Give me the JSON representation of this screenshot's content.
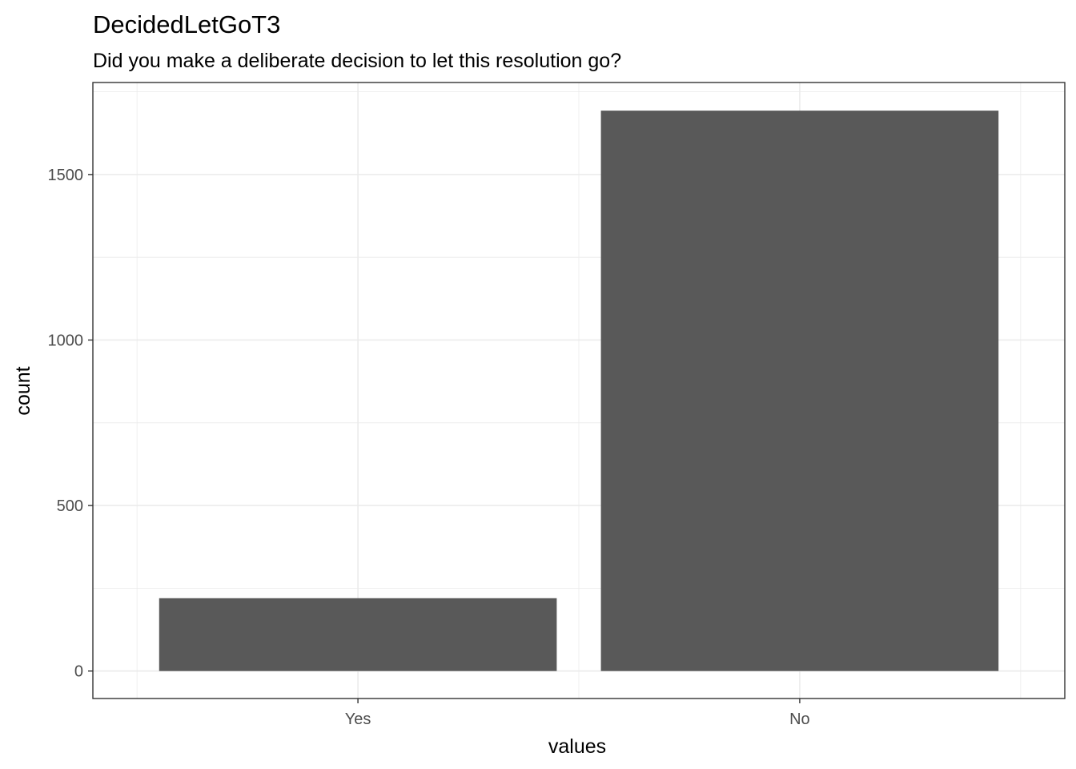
{
  "chart_data": {
    "type": "bar",
    "title": "DecidedLetGoT3",
    "subtitle": "Did you make a deliberate decision to let this resolution go?",
    "xlabel": "values",
    "ylabel": "count",
    "categories": [
      "Yes",
      "No"
    ],
    "values": [
      220,
      1693
    ],
    "ylim": [
      -83,
      1778
    ],
    "yticks": [
      0,
      500,
      1000,
      1500
    ],
    "ytick_labels": [
      "0",
      "500",
      "1000",
      "1500"
    ],
    "grid": true,
    "legend": "none",
    "colors": {
      "bar": "#595959",
      "grid": "#ebebeb",
      "panel_border": "#333333",
      "tick_label": "#4d4d4d"
    }
  }
}
